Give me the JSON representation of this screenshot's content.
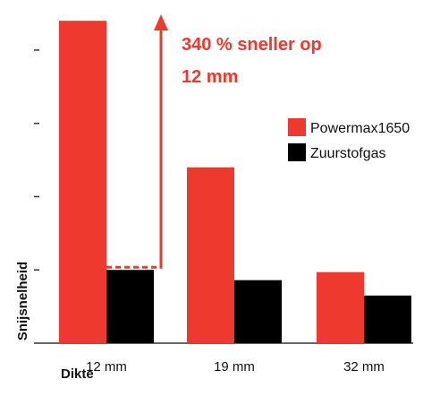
{
  "chart_data": {
    "type": "bar",
    "categories": [
      "12 mm",
      "19 mm",
      "32 mm"
    ],
    "series": [
      {
        "name": "Powermax1650",
        "color": "#ee3a2e",
        "values": [
          4.4,
          2.4,
          0.97
        ]
      },
      {
        "name": "Zuurstofgas",
        "color": "#000000",
        "values": [
          1.0,
          0.86,
          0.65
        ]
      }
    ],
    "xlabel": "Dikte",
    "ylabel": "Snijsnelheid",
    "ylim": [
      0,
      4.5
    ],
    "yticks": [
      1,
      2,
      3,
      4
    ],
    "y_tick_labels_shown": false,
    "grid": false,
    "legend_position": "right",
    "annotation": {
      "lines": [
        "340 % sneller op",
        "12 mm"
      ],
      "color": "#ee3a2e",
      "category": "12 mm"
    }
  }
}
